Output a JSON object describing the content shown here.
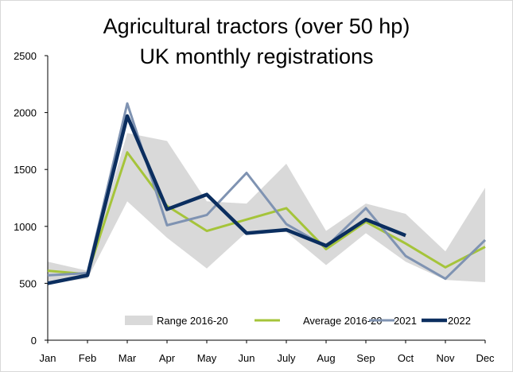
{
  "chart_data": {
    "type": "line",
    "title_line1": "Agricultural tractors (over 50 hp)",
    "title_line2": "UK monthly registrations",
    "categories": [
      "Jan",
      "Feb",
      "Mar",
      "Apr",
      "May",
      "Jun",
      "July",
      "Aug",
      "Sep",
      "Oct",
      "Nov",
      "Dec"
    ],
    "ylim": [
      0,
      2500
    ],
    "yticks": [
      0,
      500,
      1000,
      1500,
      2000,
      2500
    ],
    "grid": false,
    "legend_position": "bottom",
    "range": {
      "name": "Range 2016-20",
      "color": "#d9d9d9",
      "low": [
        500,
        540,
        1220,
        900,
        630,
        950,
        950,
        660,
        940,
        690,
        530,
        510
      ],
      "high": [
        690,
        610,
        1820,
        1750,
        1220,
        1200,
        1550,
        960,
        1200,
        1110,
        780,
        1340
      ]
    },
    "series": [
      {
        "name": "Average 2016-20",
        "color": "#a5c43a",
        "width": 3,
        "values": [
          610,
          580,
          1650,
          1180,
          960,
          1060,
          1160,
          800,
          1040,
          850,
          640,
          820
        ]
      },
      {
        "name": "2021",
        "color": "#7f93b2",
        "width": 3,
        "values": [
          570,
          590,
          2080,
          1010,
          1100,
          1470,
          1020,
          820,
          1160,
          740,
          540,
          880
        ]
      },
      {
        "name": "2022",
        "color": "#0b2e5f",
        "width": 4.5,
        "values": [
          500,
          570,
          1970,
          1150,
          1280,
          940,
          970,
          830,
          1060,
          920,
          null,
          null
        ]
      }
    ]
  }
}
